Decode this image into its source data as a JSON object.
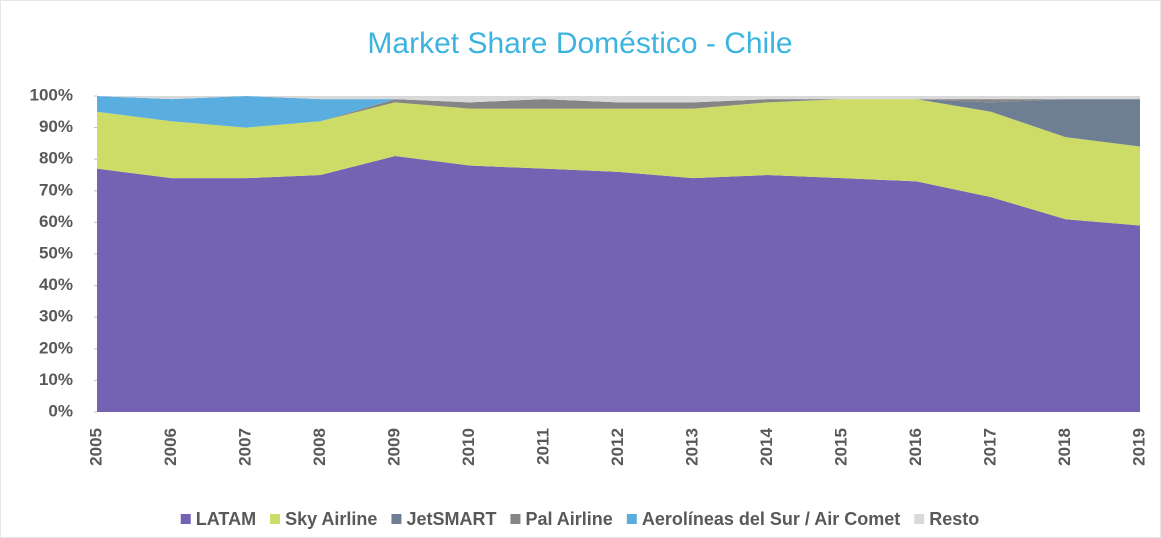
{
  "chart_data": {
    "type": "stacked_area",
    "title": "Market Share Doméstico - Chile",
    "categories": [
      "2005",
      "2006",
      "2007",
      "2008",
      "2009",
      "2010",
      "2011",
      "2012",
      "2013",
      "2014",
      "2015",
      "2016",
      "2017",
      "2018",
      "2019"
    ],
    "series": [
      {
        "name": "LATAM",
        "color": "#7462b3",
        "values": [
          77,
          74,
          74,
          75,
          81,
          78,
          77,
          76,
          74,
          75,
          74,
          73,
          68,
          61,
          59
        ]
      },
      {
        "name": "Sky Airline",
        "color": "#cddc67",
        "values": [
          18,
          18,
          16,
          17,
          17,
          18,
          19,
          20,
          22,
          23,
          25,
          26,
          27,
          26,
          25
        ]
      },
      {
        "name": "JetSMART",
        "color": "#6e7f94",
        "values": [
          0,
          0,
          0,
          0,
          0,
          0,
          0,
          0,
          0,
          0,
          0,
          0,
          3,
          12,
          15
        ]
      },
      {
        "name": "Pal Airline",
        "color": "#858585",
        "values": [
          0,
          0,
          0,
          0,
          1,
          2,
          3,
          2,
          2,
          1,
          0,
          0,
          1,
          0,
          0
        ]
      },
      {
        "name": "Aerolíneas del Sur / Air Comet",
        "color": "#5aaedf",
        "values": [
          5,
          7,
          10,
          7,
          0,
          0,
          0,
          0,
          0,
          0,
          0,
          0,
          0,
          0,
          0
        ]
      },
      {
        "name": "Resto",
        "color": "#d9d9d9",
        "values": [
          0,
          1,
          0,
          1,
          1,
          2,
          1,
          2,
          2,
          1,
          1,
          1,
          1,
          1,
          1
        ]
      }
    ],
    "ylim": [
      0,
      100
    ],
    "yticks": [
      {
        "value": 0,
        "label": "0%"
      },
      {
        "value": 10,
        "label": "10%"
      },
      {
        "value": 20,
        "label": "20%"
      },
      {
        "value": 30,
        "label": "30%"
      },
      {
        "value": 40,
        "label": "40%"
      },
      {
        "value": 50,
        "label": "50%"
      },
      {
        "value": 60,
        "label": "60%"
      },
      {
        "value": 70,
        "label": "70%"
      },
      {
        "value": 80,
        "label": "80%"
      },
      {
        "value": 90,
        "label": "90%"
      },
      {
        "value": 100,
        "label": "100%"
      }
    ],
    "legend": "bottom"
  }
}
